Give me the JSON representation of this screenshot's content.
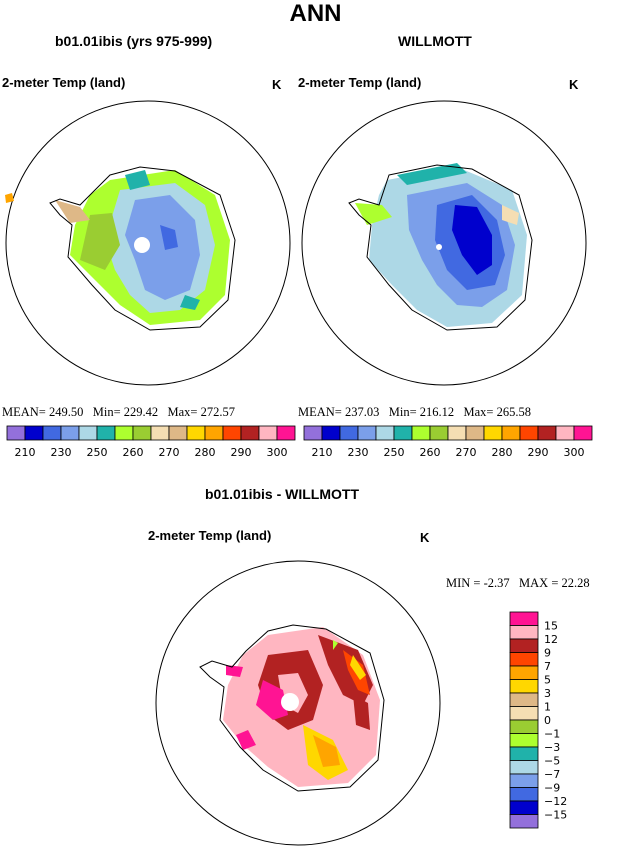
{
  "main_title": "ANN",
  "left_panel": {
    "title": "b01.01ibis (yrs 975-999)",
    "field_label": "2-meter Temp (land)",
    "unit": "K",
    "stats": {
      "mean_label": "MEAN=",
      "mean": "249.50",
      "min_label": "Min=",
      "min": "229.42",
      "max_label": "Max=",
      "max": "272.57"
    }
  },
  "right_panel": {
    "title": "WILLMOTT",
    "field_label": "2-meter Temp (land)",
    "unit": "K",
    "stats": {
      "mean_label": "MEAN=",
      "mean": "237.03",
      "min_label": "Min=",
      "min": "216.12",
      "max_label": "Max=",
      "max": "265.58"
    }
  },
  "diff_panel": {
    "title": "b01.01ibis - WILLMOTT",
    "field_label": "2-meter Temp (land)",
    "unit": "K",
    "stats": {
      "min_label": "MIN =",
      "min": "-2.37",
      "max_label": "MAX =",
      "max": "22.28"
    }
  },
  "colors": {
    "abs_scale": [
      "#9370db",
      "#0000cd",
      "#4169e1",
      "#7b9fea",
      "#add8e6",
      "#20b2aa",
      "#adff2f",
      "#9acd32",
      "#f5deb3",
      "#deb887",
      "#ffd700",
      "#ffa500",
      "#ff4500",
      "#b22222",
      "#ffb6c1",
      "#ff1493"
    ],
    "diff_scale": [
      "#9370db",
      "#0000cd",
      "#4169e1",
      "#7b9fea",
      "#add8e6",
      "#20b2aa",
      "#adff2f",
      "#9acd32",
      "#f5deb3",
      "#deb887",
      "#ffd700",
      "#ffa500",
      "#ff4500",
      "#b22222",
      "#ffb6c1",
      "#ff1493"
    ]
  },
  "chart_data": [
    {
      "type": "heatmap",
      "title": "b01.01ibis (yrs 975-999)",
      "subtitle": "2-meter Temp (land)",
      "units": "K",
      "projection": "south polar stereographic",
      "colorbar_ticks": [
        "210",
        "230",
        "250",
        "260",
        "270",
        "280",
        "290",
        "300"
      ],
      "mean": 249.5,
      "min": 229.42,
      "max": 272.57
    },
    {
      "type": "heatmap",
      "title": "WILLMOTT",
      "subtitle": "2-meter Temp (land)",
      "units": "K",
      "projection": "south polar stereographic",
      "colorbar_ticks": [
        "210",
        "230",
        "250",
        "260",
        "270",
        "280",
        "290",
        "300"
      ],
      "mean": 237.03,
      "min": 216.12,
      "max": 265.58
    },
    {
      "type": "heatmap",
      "title": "b01.01ibis - WILLMOTT",
      "subtitle": "2-meter Temp (land)",
      "units": "K",
      "projection": "south polar stereographic",
      "colorbar_ticks": [
        "15",
        "12",
        "9",
        "7",
        "5",
        "3",
        "1",
        "0",
        "−1",
        "−3",
        "−5",
        "−7",
        "−9",
        "−12",
        "−15"
      ],
      "min": -2.37,
      "max": 22.28
    }
  ]
}
